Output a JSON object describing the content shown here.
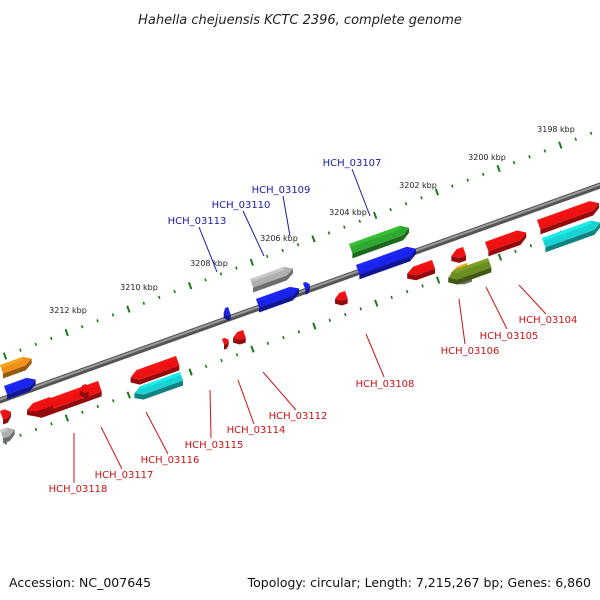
{
  "title": "Hahella chejuensis KCTC 2396, complete genome",
  "footer": {
    "accession": "Accession: NC_007645",
    "summary": "Topology: circular; Length: 7,215,267 bp; Genes: 6,860"
  },
  "colors": {
    "backbone": "#777777",
    "tick": "#1a7a1a",
    "label_top": "#1a1aa6",
    "label_bottom": "#c81414",
    "red": "#ee1111",
    "blue": "#1a22ee",
    "gray": "#b0b0b0",
    "green": "#2fa82f",
    "olive": "#6b8e23",
    "cyan": "#19d2d2",
    "orange": "#f0901a"
  },
  "scale_labels": [
    "3198 kbp",
    "3200 kbp",
    "3202 kbp",
    "3204 kbp",
    "3206 kbp",
    "3208 kbp",
    "3210 kbp",
    "3212 kbp"
  ],
  "genes_top": [
    "HCH_03107",
    "HCH_03109",
    "HCH_03110",
    "HCH_03113"
  ],
  "genes_bottom": [
    "HCH_03104",
    "HCH_03105",
    "HCH_03106",
    "HCH_03108",
    "HCH_03112",
    "HCH_03114",
    "HCH_03115",
    "HCH_03116",
    "HCH_03117",
    "HCH_03118"
  ]
}
